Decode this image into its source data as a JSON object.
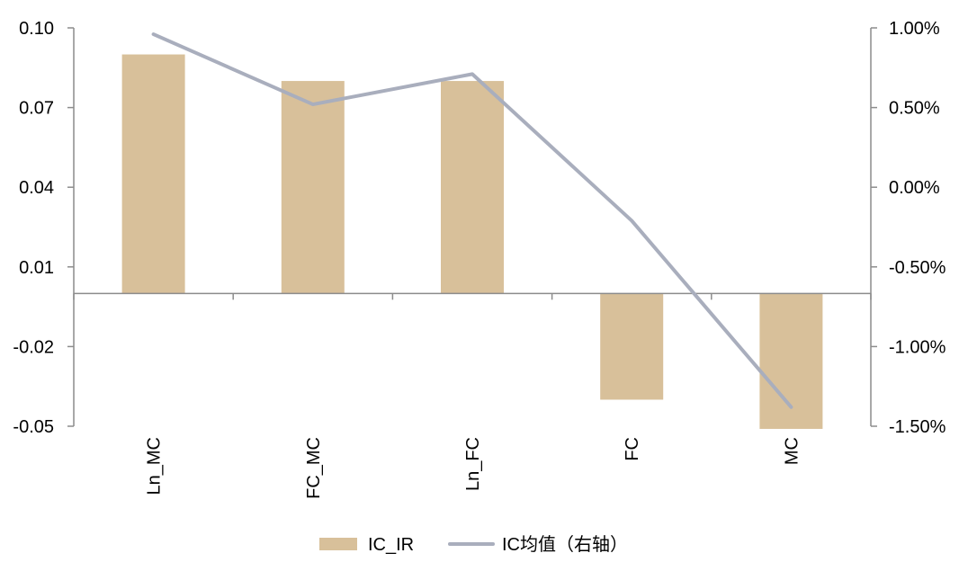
{
  "chart_data": {
    "type": "bar",
    "categories": [
      "Ln_MC",
      "FC_MC",
      "Ln_FC",
      "FC",
      "MC"
    ],
    "series": [
      {
        "name": "IC_IR",
        "type": "bar",
        "axis": "left",
        "color": "#d8c09a",
        "values": [
          0.09,
          0.08,
          0.08,
          -0.04,
          -0.051
        ]
      },
      {
        "name": "IC均值（右轴）",
        "type": "line",
        "axis": "right",
        "color": "#a9aebd",
        "values": [
          0.0096,
          0.0052,
          0.0071,
          -0.0021,
          -0.0138
        ]
      }
    ],
    "left_axis": {
      "ylim": [
        -0.05,
        0.1
      ],
      "ticks": [
        0.1,
        0.07,
        0.04,
        0.01,
        -0.02,
        -0.05
      ],
      "tick_labels": [
        "0.10",
        "0.07",
        "0.04",
        "0.01",
        "-0.02",
        "-0.05"
      ]
    },
    "right_axis": {
      "ylim": [
        -0.015,
        0.01
      ],
      "ticks": [
        0.01,
        0.005,
        0.0,
        -0.005,
        -0.01,
        -0.015
      ],
      "tick_labels": [
        "1.00%",
        "0.50%",
        "0.00%",
        "-0.50%",
        "-1.00%",
        "-1.50%"
      ]
    },
    "x_tick_rotation": "vertical",
    "grid": false,
    "legend_position": "bottom-center"
  }
}
